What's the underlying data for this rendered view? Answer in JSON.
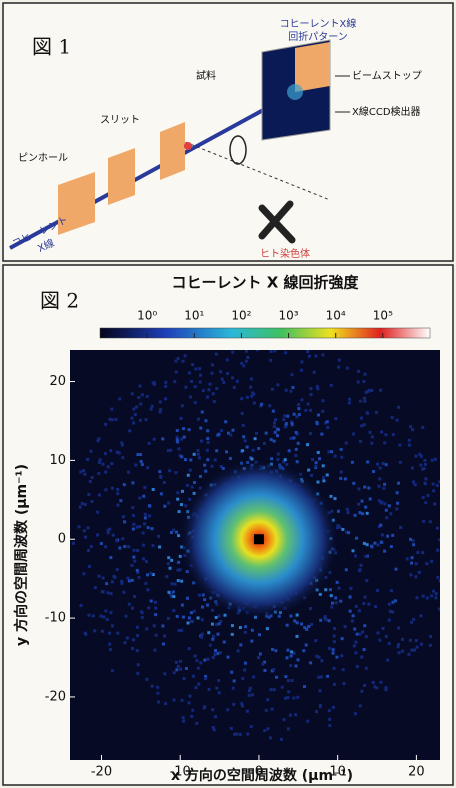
{
  "figure1": {
    "label": "図 1",
    "pattern_label": [
      "コヒーレントX線",
      "回折パターン"
    ],
    "beamstop": "ビームストップ",
    "detector": "X線CCD検出器",
    "sample": "試料",
    "slit": "スリット",
    "pinhole": "ピンホール",
    "source": [
      "コヒーレント",
      "X線"
    ],
    "chromosome": "ヒト染色体"
  },
  "figure2": {
    "label": "図 2",
    "colorbar_title": "コヒーレント X 線回折強度",
    "colorbar_lim": [
      0.1,
      1000000
    ],
    "colorbar_ticks": [
      {
        "value": 1,
        "label": "10⁰"
      },
      {
        "value": 10,
        "label": "10¹"
      },
      {
        "value": 100,
        "label": "10²"
      },
      {
        "value": 1000,
        "label": "10³"
      },
      {
        "value": 10000,
        "label": "10⁴"
      },
      {
        "value": 100000,
        "label": "10⁵"
      }
    ],
    "xlim": [
      -24,
      23
    ],
    "ylim": [
      -28,
      24
    ],
    "xticks": [
      -20,
      -10,
      0,
      10,
      20
    ],
    "yticks": [
      20,
      10,
      0,
      -10,
      -20
    ],
    "xlabel": "x 方向の空間周波数 (μm⁻¹)",
    "ylabel": "y 方向の空間周波数 (μm⁻¹)"
  }
}
